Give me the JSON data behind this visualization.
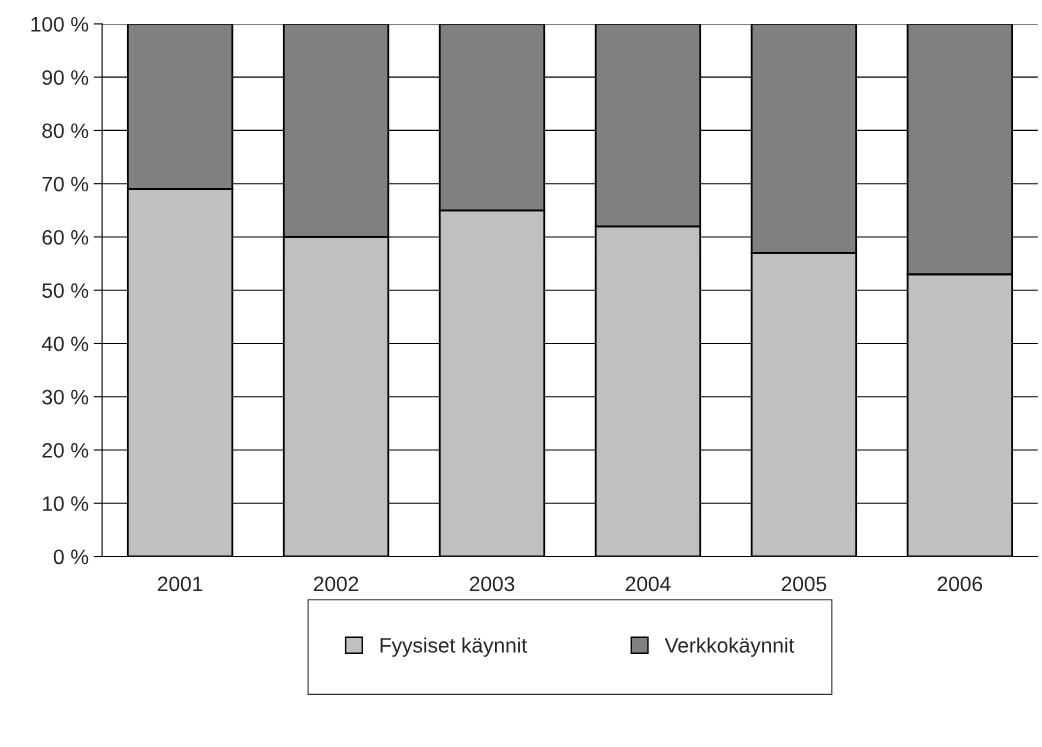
{
  "chart_data": {
    "type": "bar",
    "stacked": true,
    "categories": [
      "2001",
      "2002",
      "2003",
      "2004",
      "2005",
      "2006"
    ],
    "series": [
      {
        "name": "Fyysiset käynnit",
        "color": "#c0c0c0",
        "values": [
          69,
          60,
          65,
          62,
          57,
          53
        ]
      },
      {
        "name": "Verkkokäynnit",
        "color": "#808080",
        "values": [
          31,
          40,
          35,
          38,
          43,
          47
        ]
      }
    ],
    "ylim": [
      0,
      100
    ],
    "yticks": [
      {
        "value": 0,
        "label": "0 %"
      },
      {
        "value": 10,
        "label": "10 %"
      },
      {
        "value": 20,
        "label": "20 %"
      },
      {
        "value": 30,
        "label": "30 %"
      },
      {
        "value": 40,
        "label": "40 %"
      },
      {
        "value": 50,
        "label": "50 %"
      },
      {
        "value": 60,
        "label": "60 %"
      },
      {
        "value": 70,
        "label": "70 %"
      },
      {
        "value": 80,
        "label": "80 %"
      },
      {
        "value": 90,
        "label": "90 %"
      },
      {
        "value": 100,
        "label": "100 %"
      }
    ],
    "grid": "y",
    "legend": "bottom"
  }
}
